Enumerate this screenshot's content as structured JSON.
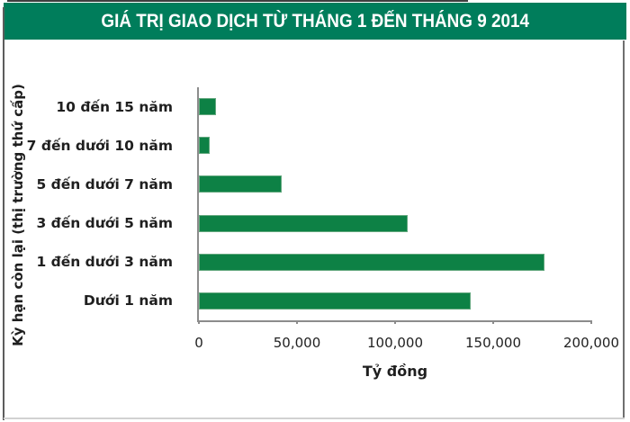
{
  "header": {
    "title": "GIÁ TRỊ GIAO DỊCH TỪ THÁNG 1 ĐẾN THÁNG 9 2014",
    "background_color": "#007d5b",
    "text_color": "#ffffff"
  },
  "chart_data": {
    "type": "bar",
    "orientation": "horizontal",
    "title": "GIÁ TRỊ GIAO DỊCH TỪ THÁNG 1 ĐẾN THÁNG 9 2014",
    "categories": [
      "10 đến 15 năm",
      "7 đến dưới 10 năm",
      "5 đến dưới 7 năm",
      "3 đến dưới 5 năm",
      "1 đến dưới 3 năm",
      "Dưới 1 năm"
    ],
    "values": [
      8700,
      5600,
      42000,
      106500,
      176000,
      138500
    ],
    "xlabel": "Tỷ đồng",
    "ylabel": "Kỳ hạn còn lại (thị trường thứ cấp)",
    "xlim": [
      0,
      200000
    ],
    "xticks": [
      {
        "value": 0,
        "label": "0"
      },
      {
        "value": 50000,
        "label": "50,000"
      },
      {
        "value": 100000,
        "label": "100,000"
      },
      {
        "value": 150000,
        "label": "150,000"
      },
      {
        "value": 200000,
        "label": "200,000"
      }
    ],
    "grid": false,
    "legend": "none",
    "bar_color": "#0d8145",
    "bar_border_color": "#63a87e",
    "axis_color": "#8c8c8c"
  }
}
